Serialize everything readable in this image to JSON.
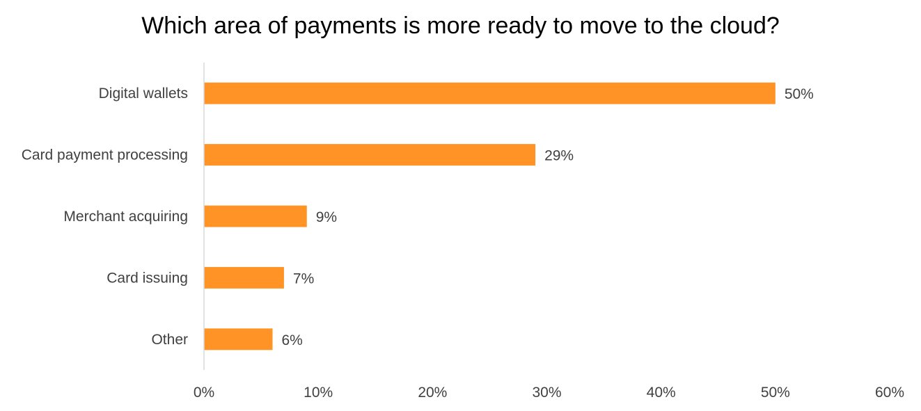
{
  "chart_data": {
    "type": "bar",
    "orientation": "horizontal",
    "title": "Which area of payments is more ready to move to the cloud?",
    "categories": [
      "Digital wallets",
      "Card payment processing",
      "Merchant acquiring",
      "Card issuing",
      "Other"
    ],
    "values": [
      50,
      29,
      9,
      7,
      6
    ],
    "value_labels": [
      "50%",
      "29%",
      "9%",
      "7%",
      "6%"
    ],
    "xlim": [
      0,
      60
    ],
    "x_ticks": [
      0,
      10,
      20,
      30,
      40,
      50,
      60
    ],
    "x_tick_labels": [
      "0%",
      "10%",
      "20%",
      "30%",
      "40%",
      "50%",
      "60%"
    ],
    "grid": false,
    "legend": "none",
    "bar_color": "#FF9326",
    "axis_color": "#D9D9D9",
    "label_color": "#404040"
  }
}
